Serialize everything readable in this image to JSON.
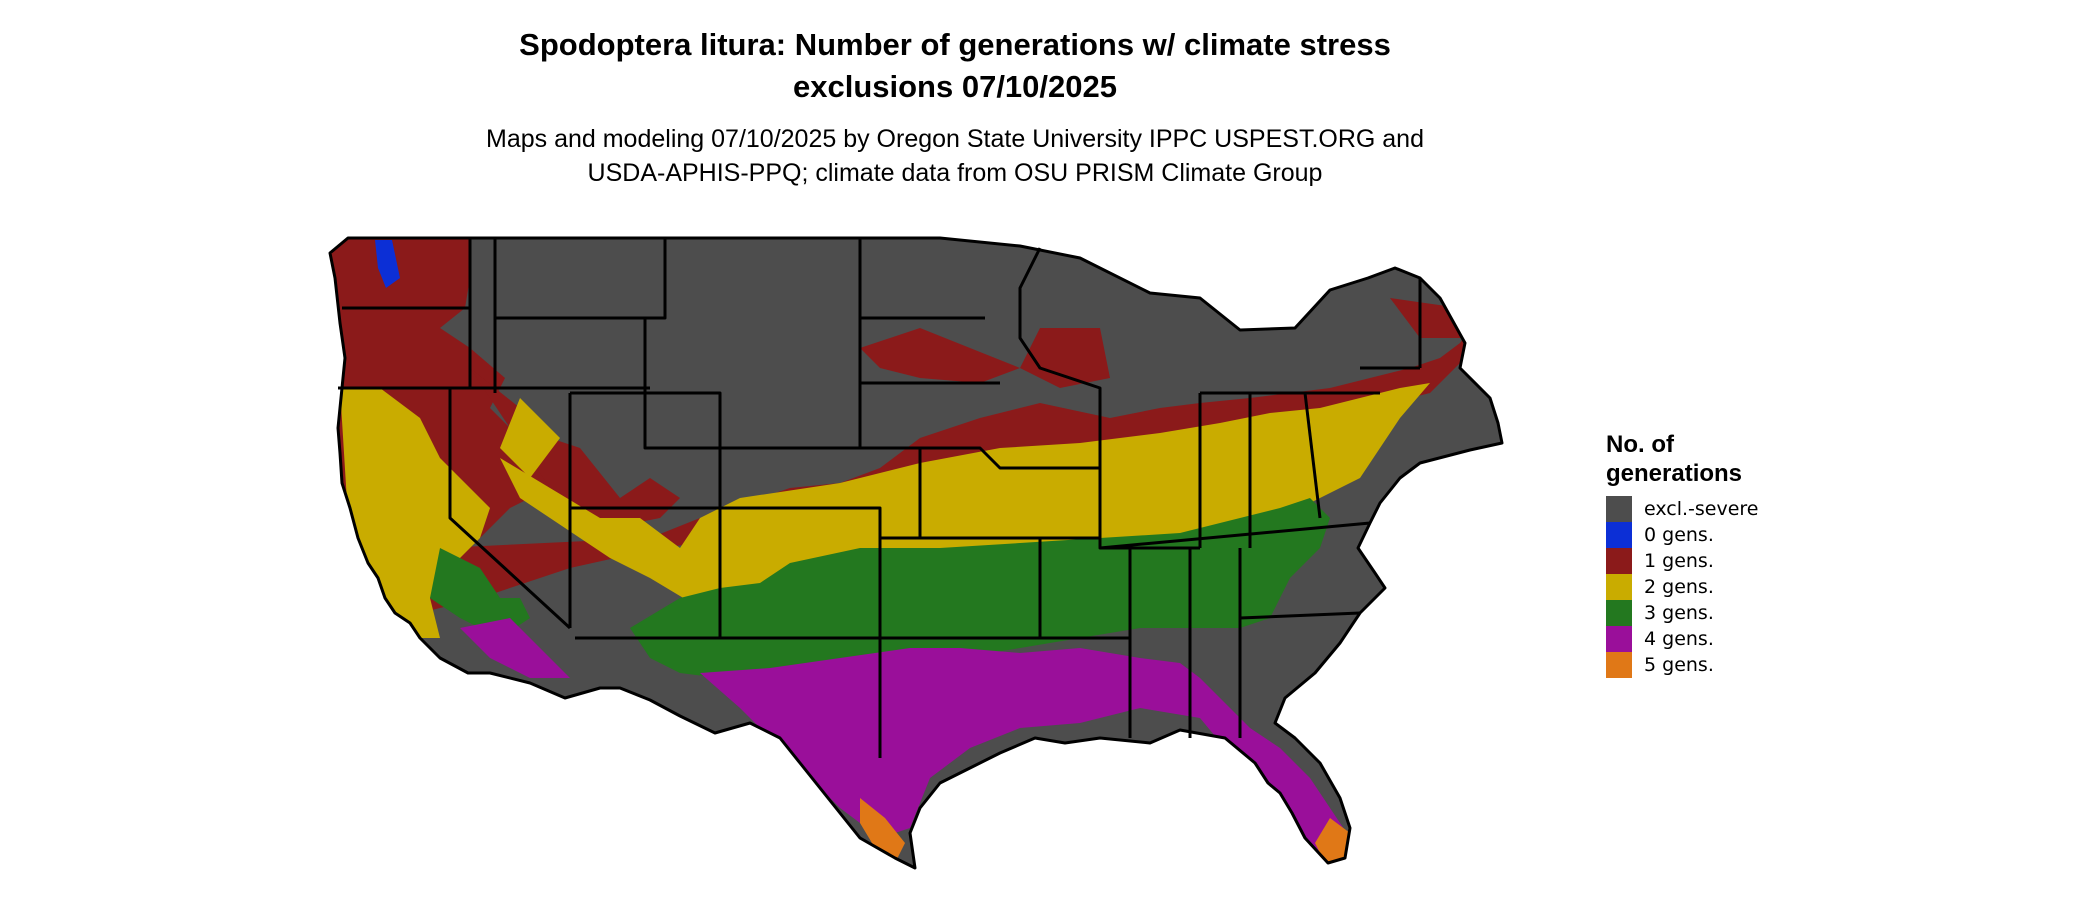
{
  "title_line1": "Spodoptera litura: Number of generations w/ climate stress",
  "title_line2": "exclusions 07/10/2025",
  "subtitle_line1": "Maps and modeling 07/10/2025 by Oregon State University IPPC USPEST.ORG and",
  "subtitle_line2": "USDA-APHIS-PPQ; climate data from OSU PRISM Climate Group",
  "legend": {
    "title_line1": "No. of",
    "title_line2": "generations",
    "items": [
      {
        "label": "excl.-severe",
        "color": "#4d4d4d"
      },
      {
        "label": "0 gens.",
        "color": "#0c2fd6"
      },
      {
        "label": "1 gens.",
        "color": "#8b1a1a"
      },
      {
        "label": "2 gens.",
        "color": "#c9ac00"
      },
      {
        "label": "3 gens.",
        "color": "#23781f"
      },
      {
        "label": "4 gens.",
        "color": "#9a0f9a"
      },
      {
        "label": "5 gens.",
        "color": "#e07817"
      }
    ]
  }
}
